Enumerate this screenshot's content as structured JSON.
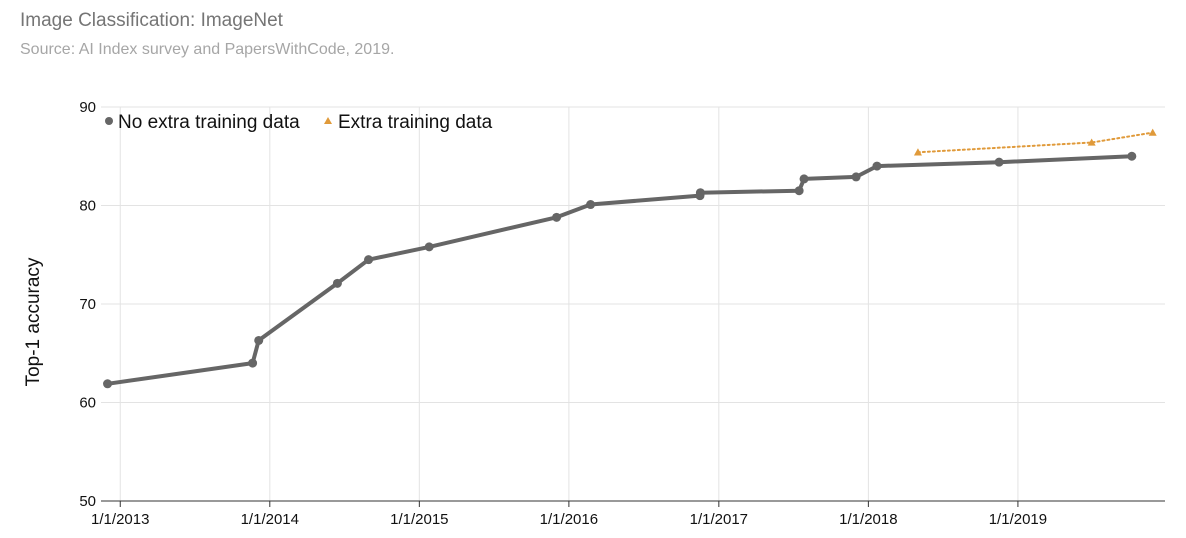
{
  "chart_data": {
    "type": "line",
    "title": "Image Classification: ImageNet",
    "subtitle": "Source: AI Index survey and PapersWithCode, 2019.",
    "ylabel": "Top-1 accuracy",
    "xlabel": "",
    "ylim": [
      50,
      90
    ],
    "yticks": [
      "50",
      "60",
      "70",
      "80",
      "90"
    ],
    "xlim": [
      "2012-11-15",
      "2019-12-26"
    ],
    "xticks": [
      "1/1/2013",
      "1/1/2014",
      "1/1/2015",
      "1/1/2016",
      "1/1/2017",
      "1/1/2018",
      "1/1/2019"
    ],
    "grid": true,
    "legend_position": "top-left",
    "series": [
      {
        "name": "No extra training data",
        "style": "solid",
        "marker": "circle",
        "color": "#666666",
        "points": [
          {
            "x": "2012-12-01",
            "y": 61.9
          },
          {
            "x": "2013-11-20",
            "y": 64.0
          },
          {
            "x": "2013-12-05",
            "y": 66.3
          },
          {
            "x": "2014-06-15",
            "y": 72.1
          },
          {
            "x": "2014-08-30",
            "y": 74.5
          },
          {
            "x": "2015-01-25",
            "y": 75.8
          },
          {
            "x": "2015-12-02",
            "y": 78.8
          },
          {
            "x": "2016-02-23",
            "y": 80.1
          },
          {
            "x": "2016-11-16",
            "y": 81.0
          },
          {
            "x": "2016-11-17",
            "y": 81.3
          },
          {
            "x": "2017-07-16",
            "y": 81.5
          },
          {
            "x": "2017-07-28",
            "y": 82.7
          },
          {
            "x": "2017-12-02",
            "y": 82.9
          },
          {
            "x": "2018-01-22",
            "y": 84.0
          },
          {
            "x": "2018-11-16",
            "y": 84.4
          },
          {
            "x": "2019-10-06",
            "y": 85.0
          }
        ]
      },
      {
        "name": "Extra training data",
        "style": "dotted",
        "marker": "triangle",
        "color": "#e09a3a",
        "points": [
          {
            "x": "2018-05-02",
            "y": 85.4
          },
          {
            "x": "2019-06-30",
            "y": 86.4
          },
          {
            "x": "2019-11-26",
            "y": 87.4
          }
        ]
      }
    ]
  }
}
